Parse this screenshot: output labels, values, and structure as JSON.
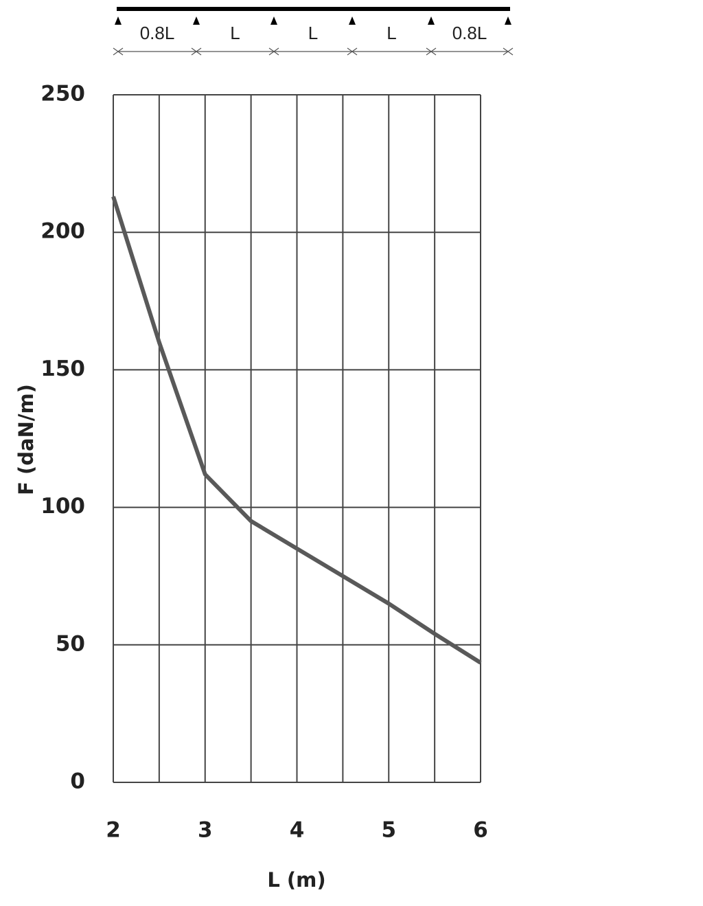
{
  "chart_data": {
    "type": "line",
    "span_labels": [
      "0.8L",
      "L",
      "L",
      "L",
      "0.8L"
    ],
    "x_label": "L (m)",
    "y_label": "F (daN/m)",
    "x": [
      2,
      2.5,
      3,
      3.5,
      4,
      4.5,
      5,
      5.5,
      6
    ],
    "series": [
      {
        "color": "#595959",
        "values": [
          213,
          160,
          112,
          95,
          85,
          75,
          65,
          54,
          43.5
        ]
      }
    ],
    "xlim": [
      2,
      6
    ],
    "xticks": [
      2,
      3,
      4,
      5,
      6
    ],
    "xgrid": [
      2,
      2.5,
      3,
      3.5,
      4,
      4.5,
      5,
      5.5,
      6
    ],
    "ylim": [
      0,
      250
    ],
    "yticks": [
      0,
      50,
      100,
      150,
      200,
      250
    ],
    "grid": true
  }
}
